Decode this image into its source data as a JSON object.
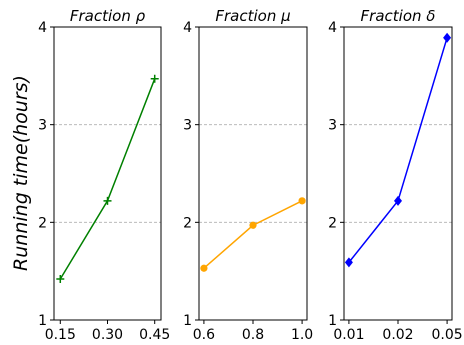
{
  "figure": {
    "ylabel": "Running time(hours)"
  },
  "chart_data": [
    {
      "type": "line",
      "title": "Fraction ρ",
      "xlabel": "",
      "ylabel": "Running time(hours)",
      "x": [
        0.15,
        0.3,
        0.45
      ],
      "x_ticks": [
        "0.15",
        "0.30",
        "0.45"
      ],
      "series": [
        {
          "values": [
            1.42,
            2.22,
            3.47
          ],
          "color": "#008000",
          "marker": "plus"
        }
      ],
      "xlim": [
        0.13,
        0.47
      ],
      "ylim": [
        1,
        4
      ],
      "y_ticks": [
        "1",
        "2",
        "3",
        "4"
      ],
      "grid": "horizontal dashed",
      "legend": "none"
    },
    {
      "type": "line",
      "title": "Fraction μ",
      "xlabel": "",
      "ylabel": "",
      "x": [
        0.6,
        0.8,
        1.0
      ],
      "x_ticks": [
        "0.6",
        "0.8",
        "1.0"
      ],
      "series": [
        {
          "values": [
            1.53,
            1.97,
            2.22
          ],
          "color": "#FFA500",
          "marker": "circle"
        }
      ],
      "xlim": [
        0.58,
        1.02
      ],
      "ylim": [
        1,
        4
      ],
      "y_ticks": [
        "1",
        "2",
        "3",
        "4"
      ],
      "grid": "horizontal dashed",
      "legend": "none"
    },
    {
      "type": "line",
      "title": "Fraction δ",
      "xlabel": "",
      "ylabel": "",
      "x": [
        0.01,
        0.02,
        0.05
      ],
      "x_ticks": [
        "0.01",
        "0.02",
        "0.05"
      ],
      "x_scale": "categorical (evenly spaced)",
      "series": [
        {
          "values": [
            1.59,
            2.22,
            3.89
          ],
          "color": "#0000FF",
          "marker": "diamond"
        }
      ],
      "ylim": [
        1,
        4
      ],
      "y_ticks": [
        "1",
        "2",
        "3",
        "4"
      ],
      "grid": "horizontal dashed",
      "legend": "none"
    }
  ]
}
